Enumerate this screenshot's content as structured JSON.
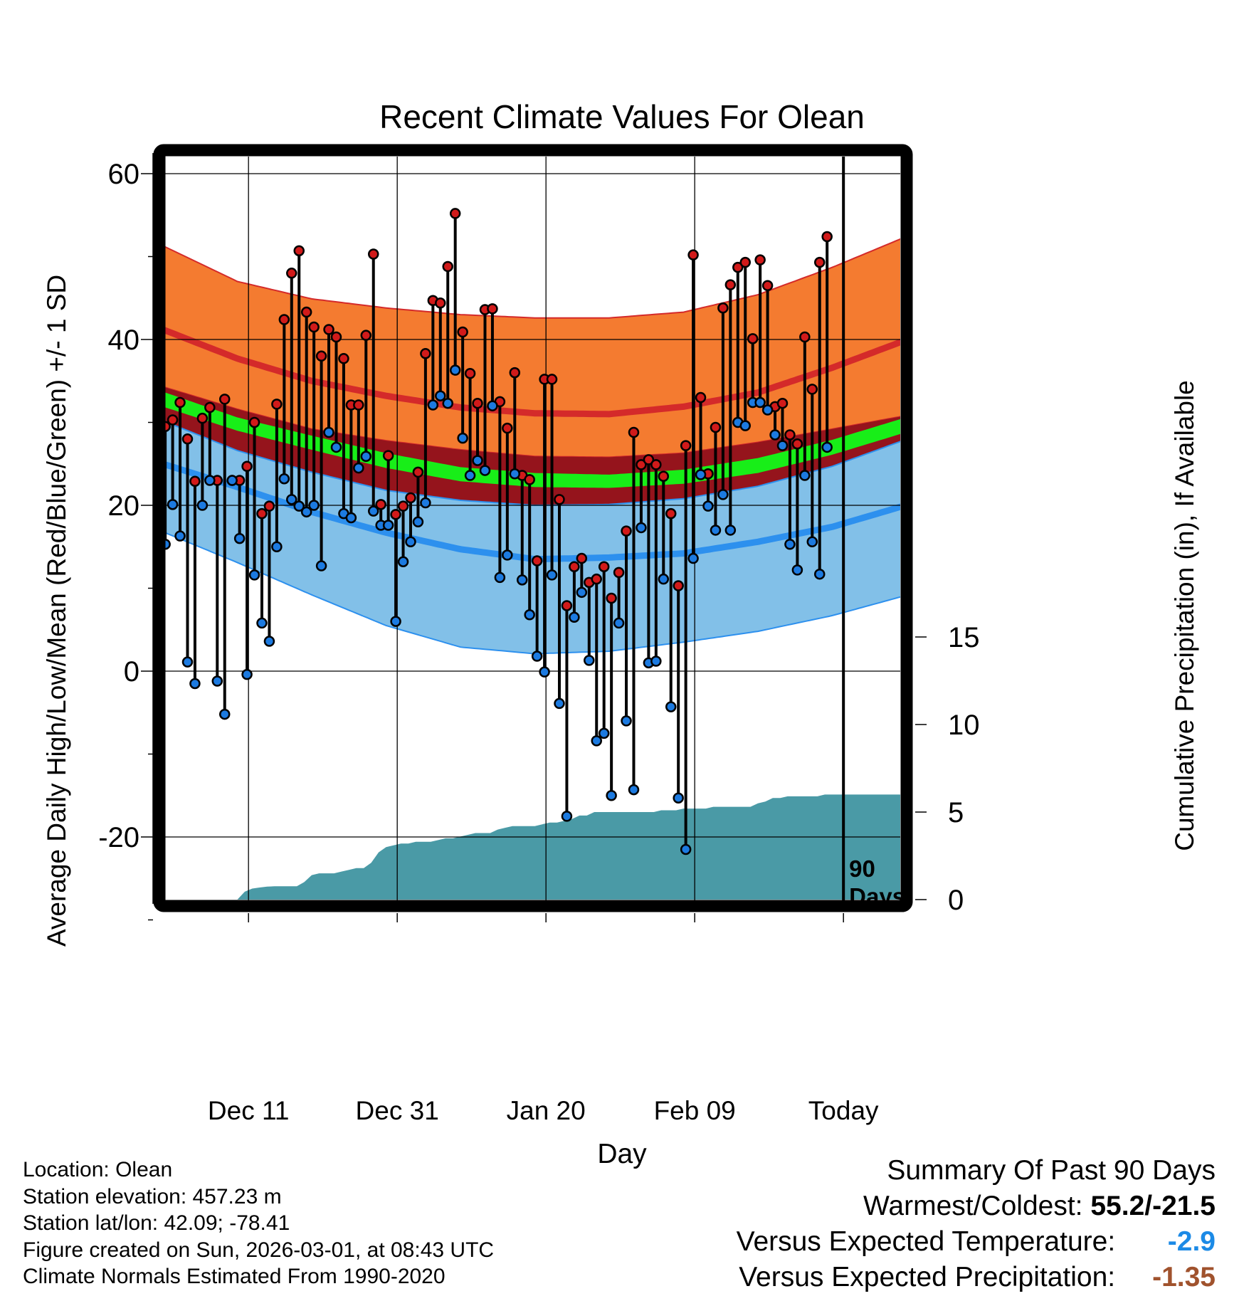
{
  "chart_data": {
    "type": "line",
    "title": "Recent Climate Values For Olean",
    "xlabel": "Day",
    "ylabel": "Average Daily High/Low/Mean (Red/Blue/Green) +/- 1 SD",
    "y2label": "Cumulative Precipitation (in), If Available",
    "ylim": [
      -31,
      61
    ],
    "y2lim": [
      0,
      30
    ],
    "yticks": [
      -20,
      0,
      20,
      40,
      60
    ],
    "y2ticks": [
      0,
      5,
      10,
      15
    ],
    "xlim": [
      0,
      101
    ],
    "xtick_positions": [
      11.5,
      31.5,
      51.5,
      71.5,
      91.5
    ],
    "xtick_labels": [
      "Dec 11",
      "Dec 31",
      "Jan 20",
      "Feb 09",
      "Today"
    ],
    "today_marker_day": 91.5,
    "today_annotation": [
      "90",
      "Days"
    ],
    "colors": {
      "high_band": "#f47b30",
      "high_mean": "#d42a2a",
      "mean_band": "#95141c",
      "mean_line": "#18ee18",
      "low_band": "#82c0e8",
      "low_mean": "#2d90ee",
      "precip": "#4a9aa6",
      "high_marker": "#d11a1a",
      "low_marker": "#1c7ae0"
    },
    "normals": {
      "days": [
        0,
        10,
        20,
        30,
        40,
        50,
        60,
        70,
        80,
        90,
        101
      ],
      "high_upper": [
        51.3,
        47.0,
        44.9,
        43.8,
        43.0,
        42.6,
        42.6,
        43.3,
        45.4,
        48.7,
        52.8
      ],
      "high_mean": [
        41.2,
        37.7,
        35.0,
        33.2,
        31.8,
        31.1,
        31.0,
        31.9,
        33.6,
        36.6,
        40.3
      ],
      "high_lower": [
        34.3,
        31.6,
        29.2,
        27.8,
        26.7,
        25.9,
        25.8,
        26.3,
        27.6,
        29.2,
        31.0
      ],
      "mean_upper": [
        33.7,
        30.6,
        28.4,
        26.3,
        24.6,
        23.9,
        23.7,
        24.3,
        25.7,
        27.9,
        30.9
      ],
      "mean_lower": [
        31.9,
        29.0,
        26.7,
        24.5,
        22.9,
        22.2,
        22.1,
        22.6,
        23.9,
        26.1,
        29.1
      ],
      "low_upper": [
        30.2,
        26.6,
        24.0,
        21.8,
        20.6,
        20.0,
        20.1,
        20.8,
        22.3,
        24.7,
        28.3
      ],
      "low_mean": [
        25.0,
        22.2,
        19.2,
        16.7,
        14.7,
        13.5,
        13.7,
        14.2,
        15.6,
        17.4,
        20.3
      ],
      "low_lower": [
        16.8,
        13.1,
        9.2,
        5.5,
        2.9,
        2.1,
        2.4,
        3.5,
        4.8,
        6.7,
        9.4
      ]
    },
    "series": [
      {
        "name": "Daily High",
        "values": [
          29.5,
          30.3,
          32.4,
          28.0,
          22.9,
          30.5,
          31.8,
          23.0,
          32.8,
          23.0,
          23.0,
          24.7,
          30.0,
          19.0,
          19.9,
          32.2,
          42.4,
          48.0,
          50.7,
          43.3,
          41.5,
          38.0,
          41.2,
          40.3,
          37.7,
          32.1,
          32.1,
          40.5,
          50.3,
          20.1,
          26.0,
          18.9,
          19.9,
          20.9,
          24.0,
          38.3,
          44.7,
          44.4,
          48.8,
          55.2,
          40.9,
          35.9,
          32.3,
          43.6,
          43.7,
          32.5,
          29.3,
          36.0,
          23.6,
          23.1,
          13.3,
          35.2,
          35.2,
          20.7,
          7.9,
          12.6,
          13.6,
          10.7,
          11.1,
          12.6,
          8.8,
          11.9,
          16.9,
          28.8,
          24.9,
          25.5,
          24.9,
          23.5,
          19.0,
          10.3,
          27.2,
          50.2,
          33.0,
          23.8,
          29.4,
          43.8,
          46.6,
          48.7,
          49.3,
          40.1,
          49.6,
          46.5,
          31.9,
          32.3,
          28.5,
          27.4,
          40.3,
          34.0,
          49.3,
          52.4,
          null
        ]
      },
      {
        "name": "Daily Low",
        "values": [
          15.3,
          20.1,
          16.3,
          1.1,
          -1.5,
          20.0,
          23.0,
          -1.2,
          -5.2,
          23.0,
          16.0,
          -0.4,
          11.6,
          5.8,
          3.6,
          15.0,
          23.2,
          20.7,
          19.9,
          19.2,
          20.0,
          12.7,
          28.8,
          27.0,
          19.0,
          18.5,
          24.5,
          25.9,
          19.3,
          17.6,
          17.6,
          6.0,
          13.2,
          15.6,
          18.0,
          20.3,
          32.1,
          33.2,
          32.3,
          36.3,
          28.1,
          23.6,
          25.4,
          24.2,
          32.0,
          11.3,
          14.0,
          23.8,
          11.0,
          6.8,
          1.8,
          -0.1,
          11.6,
          -3.9,
          -17.5,
          6.5,
          9.5,
          1.3,
          -8.4,
          -7.5,
          -15.0,
          5.8,
          -6.0,
          -14.3,
          17.3,
          1.0,
          1.2,
          11.1,
          -4.3,
          -15.3,
          -21.5,
          13.6,
          23.7,
          19.9,
          17.0,
          21.3,
          17.0,
          30.0,
          29.6,
          32.4,
          32.4,
          31.5,
          28.5,
          27.2,
          15.3,
          12.2,
          23.6,
          15.6,
          11.7,
          27.0,
          null
        ]
      },
      {
        "name": "Cumulative Precipitation",
        "values": [
          0.0,
          0.0,
          0.0,
          0.0,
          0.0,
          0.0,
          0.0,
          0.0,
          0.0,
          0.0,
          0.45,
          0.63,
          0.69,
          0.74,
          0.76,
          0.76,
          0.76,
          0.76,
          1.0,
          1.4,
          1.5,
          1.5,
          1.5,
          1.6,
          1.7,
          1.8,
          1.8,
          2.1,
          2.7,
          3.0,
          3.1,
          3.2,
          3.2,
          3.3,
          3.3,
          3.3,
          3.4,
          3.5,
          3.5,
          3.6,
          3.7,
          3.8,
          3.8,
          3.8,
          4.0,
          4.1,
          4.2,
          4.2,
          4.2,
          4.2,
          4.3,
          4.4,
          4.4,
          4.5,
          4.6,
          4.8,
          4.8,
          5.0,
          5.0,
          5.0,
          5.0,
          5.0,
          5.0,
          5.0,
          5.0,
          5.0,
          5.1,
          5.1,
          5.1,
          5.2,
          5.2,
          5.2,
          5.2,
          5.3,
          5.3,
          5.3,
          5.3,
          5.3,
          5.3,
          5.5,
          5.6,
          5.8,
          5.8,
          5.9,
          5.9,
          5.9,
          5.9,
          5.9,
          6.0,
          6.0,
          6.0
        ]
      }
    ]
  },
  "footer": {
    "location": "Location: Olean",
    "elevation": "Station elevation: 457.23 m",
    "latlon": "Station lat/lon: 42.09; -78.41",
    "created": "Figure created on Sun, 2026-03-01, at 08:43 UTC",
    "normals": "Climate Normals Estimated From 1990-2020"
  },
  "summary": {
    "heading": "Summary Of Past 90 Days",
    "warmest_label": "Warmest/Coldest:",
    "warmest_value": "55.2/-21.5",
    "temp_label": "Versus Expected Temperature:",
    "temp_value": "-2.9",
    "temp_color": "#1c8ae6",
    "precip_label": "Versus Expected Precipitation:",
    "precip_value": "-1.35",
    "precip_color": "#a0522d"
  }
}
